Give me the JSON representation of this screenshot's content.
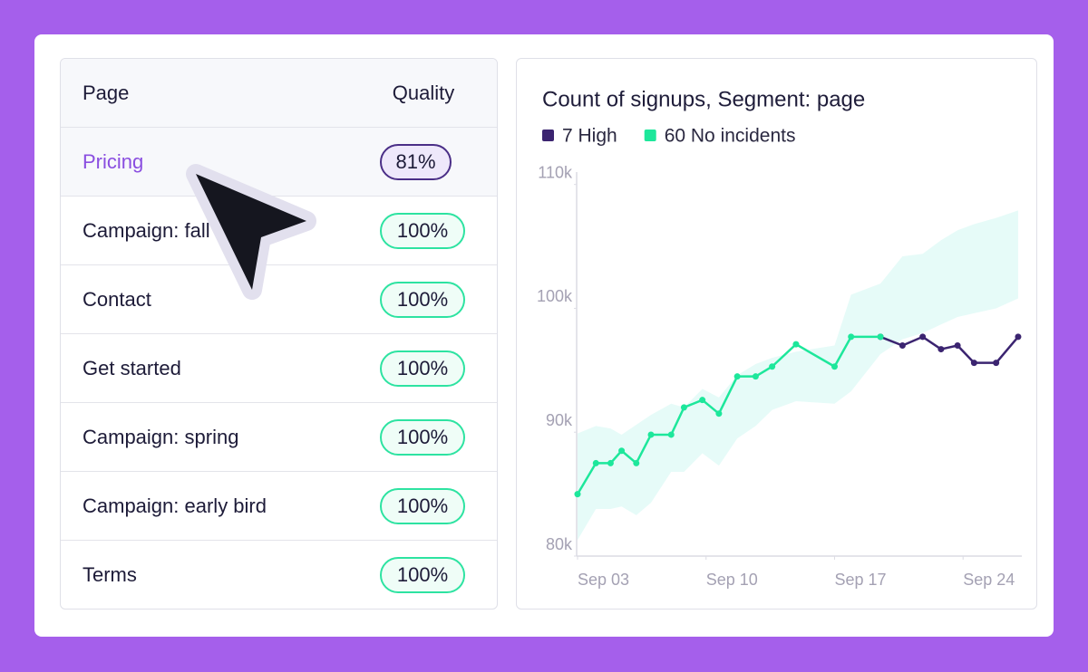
{
  "table": {
    "header": [
      "Page",
      "Quality"
    ],
    "rows": [
      [
        "Pricing",
        "81%"
      ],
      [
        "Campaign: fall",
        "100%"
      ],
      [
        "Contact",
        "100%"
      ],
      [
        "Get started",
        "100%"
      ],
      [
        "Campaign: spring",
        "100%"
      ],
      [
        "Campaign: early bird",
        "100%"
      ],
      [
        "Terms",
        "100%"
      ]
    ]
  },
  "chart_data": {
    "type": "line",
    "title": "Count of signups, Segment: page",
    "x": [
      3,
      4,
      4.8,
      5.4,
      6.2,
      7.0,
      8.1,
      8.8,
      9.8,
      10.7,
      11.7,
      12.7,
      13.6,
      14.9,
      17.0,
      17.9,
      19.5,
      20.7,
      21.8,
      22.8,
      23.7,
      24.6,
      25.8,
      27.0
    ],
    "series": [
      {
        "name": "7 High",
        "color": "#3b2470",
        "values": [
          null,
          null,
          null,
          null,
          null,
          null,
          null,
          null,
          null,
          null,
          null,
          null,
          null,
          null,
          null,
          null,
          97700,
          97000,
          97700,
          96700,
          97000,
          95600,
          95600,
          97700
        ]
      },
      {
        "name": "60 No incidents",
        "color": "#1de79b",
        "values": [
          85000,
          87500,
          87500,
          88500,
          87500,
          89800,
          89800,
          92000,
          92600,
          91500,
          94500,
          94500,
          95300,
          97100,
          95300,
          97700,
          97700,
          null,
          null,
          null,
          null,
          null,
          null,
          null
        ]
      }
    ],
    "band": {
      "color": "#e6fbf8",
      "upper": [
        89900,
        90500,
        90300,
        89800,
        90600,
        91400,
        92300,
        92000,
        93500,
        92800,
        94600,
        95500,
        96000,
        96500,
        97000,
        101100,
        102000,
        104200,
        104400,
        105500,
        106300,
        106800,
        107300,
        107900
      ],
      "lower": [
        81300,
        83800,
        83800,
        84000,
        83300,
        84300,
        86800,
        86800,
        88300,
        87300,
        89500,
        90500,
        91800,
        92500,
        92300,
        93300,
        96300,
        97500,
        98000,
        98700,
        99300,
        99600,
        100000,
        100800
      ]
    },
    "xlim": [
      3,
      27.2
    ],
    "xticks": [
      {
        "value": 3,
        "label": "Sep 03"
      },
      {
        "value": 10,
        "label": "Sep 10"
      },
      {
        "value": 17,
        "label": "Sep 17"
      },
      {
        "value": 24,
        "label": "Sep 24"
      }
    ],
    "ylim": [
      80000,
      111000
    ],
    "yticks": [
      {
        "value": 80000,
        "label": "80k"
      },
      {
        "value": 90000,
        "label": "90k"
      },
      {
        "value": 100000,
        "label": "100k"
      },
      {
        "value": 110000,
        "label": "110k"
      }
    ]
  }
}
